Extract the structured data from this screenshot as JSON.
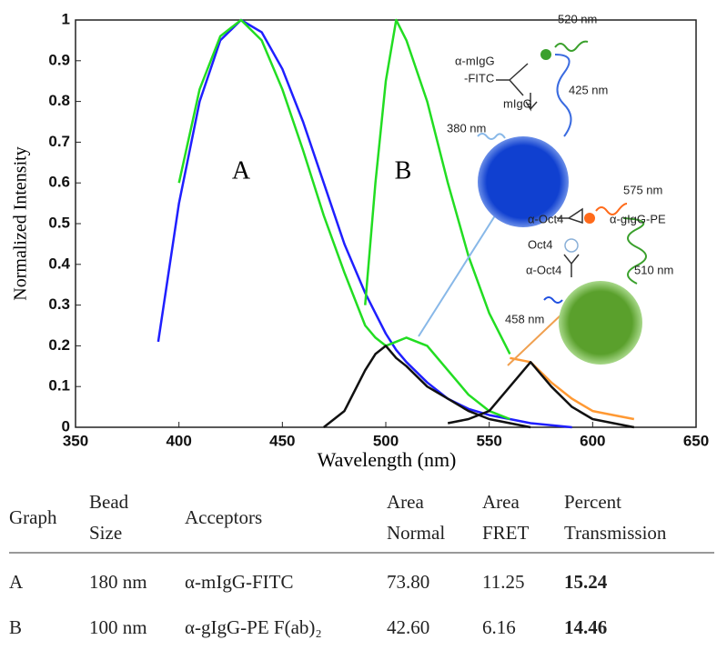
{
  "chart_data": {
    "type": "line",
    "ylabel": "Normalized Intensity",
    "xlabel": "Wavelength (nm)",
    "annotations": [
      "A",
      "B"
    ],
    "diagram_labels": [
      "520 nm",
      "α-mIgG",
      "-FITC",
      "mIgG",
      "425 nm",
      "380 nm",
      "575 nm",
      "α-Oct4",
      "α-gIgG-PE",
      "Oct4",
      "α-Oct4",
      "510 nm",
      "458 nm"
    ],
    "x": [
      390,
      400,
      410,
      420,
      430,
      440,
      450,
      460,
      470,
      480,
      490,
      495,
      500,
      505,
      510,
      520,
      530,
      540,
      550,
      560,
      570,
      580,
      590,
      600,
      610,
      620
    ],
    "series": [
      {
        "color": "#1f1fff",
        "values": [
          0.21,
          0.55,
          0.8,
          0.95,
          1.0,
          0.97,
          0.88,
          0.75,
          0.6,
          0.45,
          0.33,
          0.28,
          0.23,
          0.19,
          0.16,
          0.11,
          0.07,
          0.045,
          0.03,
          0.02,
          0.01,
          0.005,
          0.0,
          null,
          null,
          null
        ]
      },
      {
        "color": "#22dd22",
        "values": [
          null,
          0.6,
          0.83,
          0.96,
          1.0,
          0.95,
          0.83,
          0.68,
          0.52,
          0.38,
          0.25,
          0.22,
          0.2,
          0.21,
          0.22,
          0.2,
          0.14,
          0.08,
          0.04,
          0.02,
          null,
          null,
          null,
          null,
          null,
          null
        ]
      },
      {
        "color": "#111111",
        "values": [
          null,
          null,
          null,
          null,
          null,
          null,
          null,
          null,
          0.0,
          0.04,
          0.14,
          0.18,
          0.2,
          0.17,
          0.15,
          0.1,
          0.07,
          0.04,
          0.02,
          0.01,
          0.0,
          null,
          null,
          null,
          null,
          null
        ]
      },
      {
        "color": "#22dd22",
        "values": [
          null,
          null,
          null,
          null,
          null,
          null,
          null,
          null,
          null,
          null,
          0.3,
          0.6,
          0.85,
          1.0,
          0.95,
          0.8,
          0.6,
          0.42,
          0.28,
          0.18,
          null,
          null,
          null,
          null,
          null,
          null
        ]
      },
      {
        "color": "#ff9933",
        "values": [
          null,
          null,
          null,
          null,
          null,
          null,
          null,
          null,
          null,
          null,
          null,
          null,
          null,
          null,
          null,
          null,
          null,
          null,
          null,
          0.17,
          0.16,
          0.11,
          0.07,
          0.04,
          0.03,
          0.02
        ]
      },
      {
        "color": "#111111",
        "values": [
          null,
          null,
          null,
          null,
          null,
          null,
          null,
          null,
          null,
          null,
          null,
          null,
          null,
          null,
          null,
          null,
          0.01,
          0.02,
          0.04,
          0.1,
          0.16,
          0.1,
          0.05,
          0.02,
          0.01,
          0.0
        ]
      }
    ],
    "xlim": [
      350,
      650
    ],
    "xticks": [
      350,
      400,
      450,
      500,
      550,
      600,
      650
    ],
    "ylim": [
      0,
      1
    ],
    "yticks": [
      0,
      0.1,
      0.2,
      0.3,
      0.4,
      0.5,
      0.6,
      0.7,
      0.8,
      0.9,
      1
    ]
  },
  "table": {
    "header": [
      "Graph",
      "Bead Size",
      "Acceptors",
      "Area Normal",
      "Area FRET",
      "Percent Transmission"
    ],
    "rows": [
      [
        "A",
        "180 nm",
        "α-mIgG-FITC",
        "73.80",
        "11.25",
        "15.24"
      ],
      [
        "B",
        "100 nm",
        "α-gIgG-PE F(ab)₂",
        "42.60",
        "6.16",
        "14.46"
      ]
    ]
  }
}
